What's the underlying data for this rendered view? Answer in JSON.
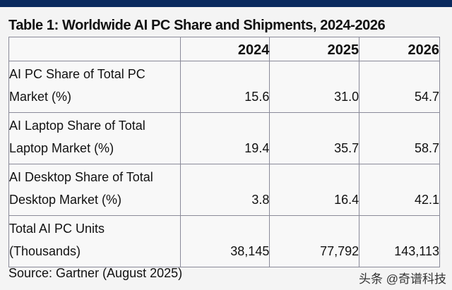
{
  "title": "Table 1: Worldwide AI PC Share and Shipments, 2024-2026",
  "columns": [
    "",
    "2024",
    "2025",
    "2026"
  ],
  "rows": [
    {
      "label_line1": "AI PC Share of Total PC",
      "label_line2": "Market (%)",
      "values": [
        "15.6",
        "31.0",
        "54.7"
      ]
    },
    {
      "label_line1": "AI Laptop Share of Total",
      "label_line2": "Laptop Market (%)",
      "values": [
        "19.4",
        "35.7",
        "58.7"
      ]
    },
    {
      "label_line1": "AI Desktop Share of Total",
      "label_line2": "Desktop Market (%)",
      "values": [
        "3.8",
        "16.4",
        "42.1"
      ]
    },
    {
      "label_line1": "Total AI PC Units",
      "label_line2": "(Thousands)",
      "values": [
        "38,145",
        "77,792",
        "143,113"
      ]
    }
  ],
  "source": "Source: Gartner (August 2025)",
  "watermark": "头条 @奇谱科技"
}
